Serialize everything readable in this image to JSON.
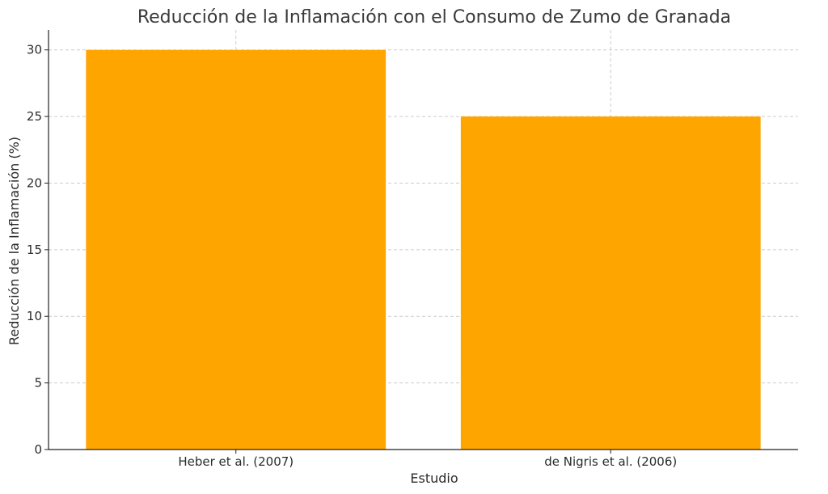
{
  "chart_data": {
    "type": "bar",
    "title": "Reducción de la Inflamación con el Consumo de Zumo de Granada",
    "xlabel": "Estudio",
    "ylabel": "Reducción de la Inflamación (%)",
    "categories": [
      "Heber et al. (2007)",
      "de Nigris et al. (2006)"
    ],
    "values": [
      30,
      25
    ],
    "ylim": [
      0,
      31.5
    ],
    "yticks": [
      0,
      5,
      10,
      15,
      20,
      25,
      30
    ],
    "grid": true,
    "bar_color": "#FFA500"
  }
}
